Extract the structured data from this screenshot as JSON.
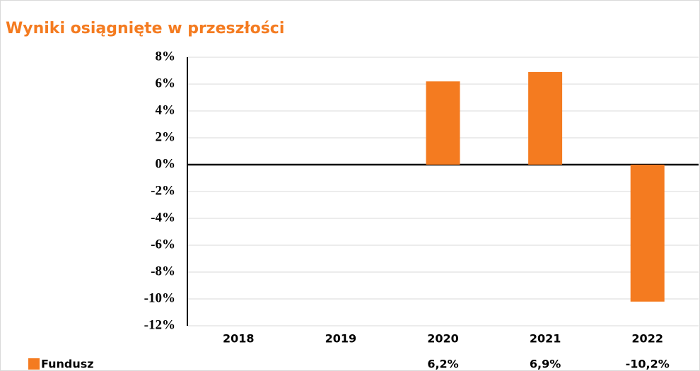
{
  "chart_data": {
    "type": "bar",
    "title": "Wyniki osiągnięte w przeszłości",
    "categories": [
      "2018",
      "2019",
      "2020",
      "2021",
      "2022"
    ],
    "series": [
      {
        "name": "Fundusz",
        "color": "#f47b20",
        "values": [
          null,
          null,
          6.2,
          6.9,
          -10.2
        ],
        "value_labels": [
          null,
          null,
          "6,2%",
          "6,9%",
          "-10,2%"
        ]
      }
    ],
    "ylim": [
      -12,
      8
    ],
    "yticks": [
      {
        "value": -12,
        "label": "-12%"
      },
      {
        "value": -10,
        "label": "-10%"
      },
      {
        "value": -8,
        "label": "-8%"
      },
      {
        "value": -6,
        "label": "-6%"
      },
      {
        "value": -4,
        "label": "-4%"
      },
      {
        "value": -2,
        "label": "-2%"
      },
      {
        "value": 0,
        "label": "0%"
      },
      {
        "value": 2,
        "label": "2%"
      },
      {
        "value": 4,
        "label": "4%"
      },
      {
        "value": 6,
        "label": "6%"
      },
      {
        "value": 8,
        "label": "8%"
      }
    ],
    "grid": true
  }
}
